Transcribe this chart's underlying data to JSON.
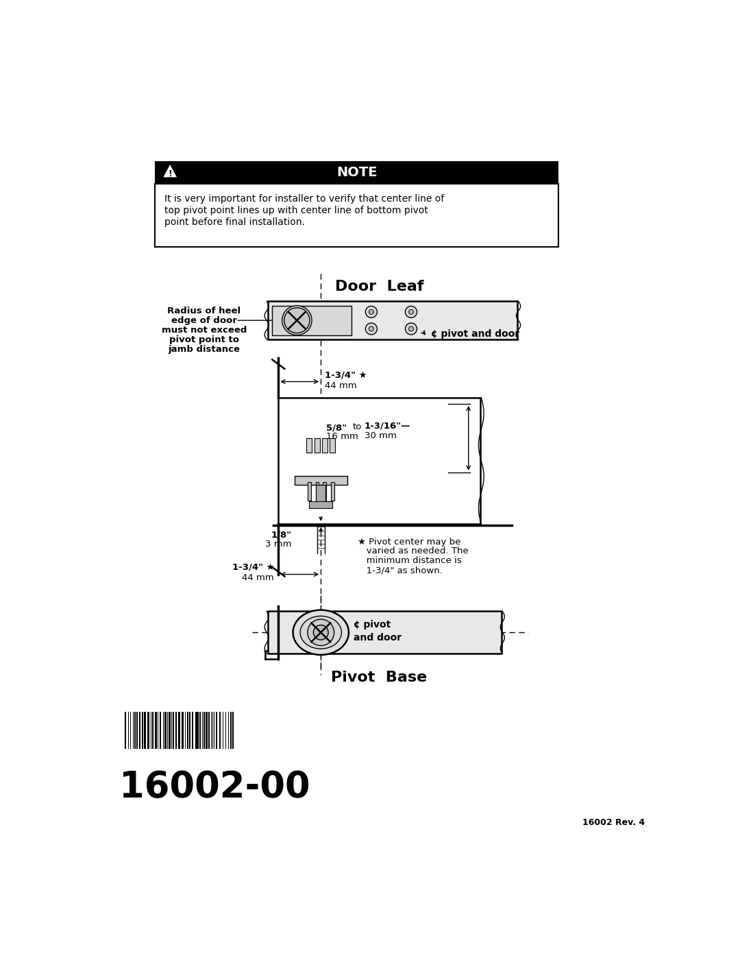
{
  "bg_color": "#ffffff",
  "note_warning_text_line1": "It is very important for installer to verify that center line of",
  "note_warning_text_line2": "top pivot point lines up with center line of bottom pivot",
  "note_warning_text_line3": "point before final installation.",
  "door_leaf_title": "Door  Leaf",
  "pivot_base_title": "Pivot  Base",
  "label_radius_heel_lines": [
    "Radius of heel",
    "edge of door",
    "must not exceed",
    "pivot point to",
    "jamb distance"
  ],
  "label_pivot_door_top": "¢ pivot and door",
  "label_pivot_door_bottom_line1": "¢ pivot",
  "label_pivot_door_bottom_line2": "and door",
  "dim_1_inch": "1-3/4\" ★",
  "dim_1_mm": "44 mm",
  "dim_2a_inch": "5/8\"",
  "dim_2a_mm": "16 mm",
  "dim_to": "to",
  "dim_2b_inch": "1-3/16\"—",
  "dim_2b_mm": "30 mm",
  "dim_3_inch": "1/8\"",
  "dim_3_mm": "3 mm",
  "dim_4_inch": "1-3/4\" ★",
  "dim_4_mm": "44 mm",
  "star_note_lines": [
    "★ Pivot center may be",
    "   varied as needed. The",
    "   minimum distance is",
    "   1-3/4\" as shown."
  ],
  "part_number": "16002-00",
  "rev": "16002 Rev. 4",
  "lc": "#000000"
}
